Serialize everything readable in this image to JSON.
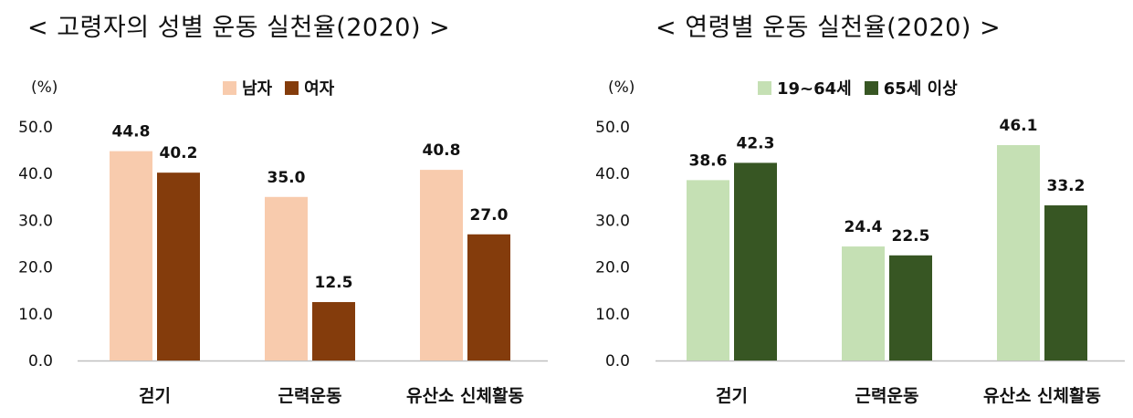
{
  "chart_data": [
    {
      "type": "bar",
      "title": "< 고령자의 성별 운동 실천율(2020) >",
      "unit": "(%)",
      "categories": [
        "걷기",
        "근력운동",
        "유산소 신체활동"
      ],
      "series": [
        {
          "name": "남자",
          "values": [
            44.8,
            35.0,
            40.8
          ],
          "color": "#f8cbad"
        },
        {
          "name": "여자",
          "values": [
            40.2,
            12.5,
            27.0
          ],
          "color": "#843c0c"
        }
      ],
      "ylim": [
        0,
        50
      ],
      "yticks": [
        "0.0",
        "10.0",
        "20.0",
        "30.0",
        "40.0",
        "50.0"
      ],
      "legend": "top-center",
      "grid": false
    },
    {
      "type": "bar",
      "title": "< 연령별 운동 실천율(2020) >",
      "unit": "(%)",
      "categories": [
        "걷기",
        "근력운동",
        "유산소 신체활동"
      ],
      "series": [
        {
          "name": "19~64세",
          "values": [
            38.6,
            24.4,
            46.1
          ],
          "color": "#c5e0b4"
        },
        {
          "name": "65세 이상",
          "values": [
            42.3,
            22.5,
            33.2
          ],
          "color": "#375623"
        }
      ],
      "ylim": [
        0,
        50
      ],
      "yticks": [
        "0.0",
        "10.0",
        "20.0",
        "30.0",
        "40.0",
        "50.0"
      ],
      "legend": "top-center",
      "grid": false
    }
  ]
}
